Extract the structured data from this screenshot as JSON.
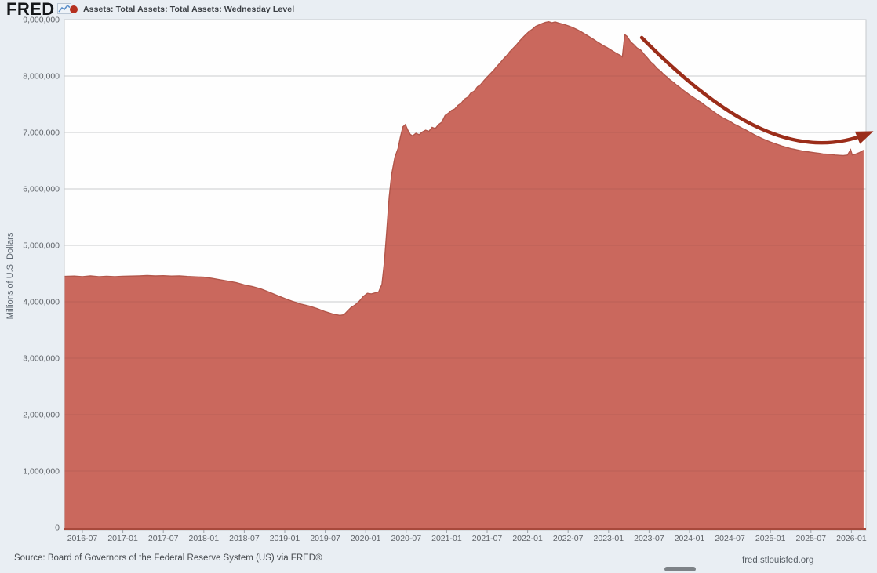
{
  "header": {
    "logo": "FRED"
  },
  "legend": {
    "marker_color": "#b5301f",
    "label": "Assets: Total Assets: Total Assets: Wednesday Level"
  },
  "footer": {
    "source": "Source: Board of Governors of the Federal Reserve System (US) via FRED®",
    "site": "fred.stlouisfed.org"
  },
  "chart_data": {
    "type": "area",
    "title": "Assets: Total Assets: Total Assets: Wednesday Level",
    "xlabel": "",
    "ylabel": "Millions of U.S. Dollars",
    "ylim": [
      0,
      9000000
    ],
    "xlim_decimal_years": [
      2016.277,
      2026.18
    ],
    "grid": "horizontal",
    "legend_position": "top-left",
    "background": "#fefefe",
    "fill_color": "#ca685d",
    "line_color": "#b2564a",
    "grid_color": "#d9dcdf",
    "border_color": "#c6cacd",
    "baseline_color": "#a8493c",
    "tick_color": "#5f6368",
    "y_ticks": [
      {
        "v": 0,
        "label": "0"
      },
      {
        "v": 1000000,
        "label": "1,000,000"
      },
      {
        "v": 2000000,
        "label": "2,000,000"
      },
      {
        "v": 3000000,
        "label": "3,000,000"
      },
      {
        "v": 4000000,
        "label": "4,000,000"
      },
      {
        "v": 5000000,
        "label": "5,000,000"
      },
      {
        "v": 6000000,
        "label": "6,000,000"
      },
      {
        "v": 7000000,
        "label": "7,000,000"
      },
      {
        "v": 8000000,
        "label": "8,000,000"
      },
      {
        "v": 9000000,
        "label": "9,000,000"
      }
    ],
    "x_ticks": [
      {
        "t": 2016.5,
        "label": "2016-07"
      },
      {
        "t": 2017.0,
        "label": "2017-01"
      },
      {
        "t": 2017.5,
        "label": "2017-07"
      },
      {
        "t": 2018.0,
        "label": "2018-01"
      },
      {
        "t": 2018.5,
        "label": "2018-07"
      },
      {
        "t": 2019.0,
        "label": "2019-01"
      },
      {
        "t": 2019.5,
        "label": "2019-07"
      },
      {
        "t": 2020.0,
        "label": "2020-01"
      },
      {
        "t": 2020.5,
        "label": "2020-07"
      },
      {
        "t": 2021.0,
        "label": "2021-01"
      },
      {
        "t": 2021.5,
        "label": "2021-07"
      },
      {
        "t": 2022.0,
        "label": "2022-01"
      },
      {
        "t": 2022.5,
        "label": "2022-07"
      },
      {
        "t": 2023.0,
        "label": "2023-01"
      },
      {
        "t": 2023.5,
        "label": "2023-07"
      },
      {
        "t": 2024.0,
        "label": "2024-01"
      },
      {
        "t": 2024.5,
        "label": "2024-07"
      },
      {
        "t": 2025.0,
        "label": "2025-01"
      },
      {
        "t": 2025.5,
        "label": "2025-07"
      },
      {
        "t": 2026.0,
        "label": "2026-01"
      }
    ],
    "series": [
      {
        "name": "Assets: Total Assets: Total Assets: Wednesday Level",
        "points": [
          [
            2016.28,
            4450000
          ],
          [
            2016.4,
            4455000
          ],
          [
            2016.5,
            4446000
          ],
          [
            2016.6,
            4458000
          ],
          [
            2016.7,
            4444000
          ],
          [
            2016.8,
            4452000
          ],
          [
            2016.9,
            4446000
          ],
          [
            2017.0,
            4451000
          ],
          [
            2017.1,
            4456000
          ],
          [
            2017.2,
            4460000
          ],
          [
            2017.3,
            4465000
          ],
          [
            2017.4,
            4458000
          ],
          [
            2017.5,
            4462000
          ],
          [
            2017.6,
            4455000
          ],
          [
            2017.7,
            4460000
          ],
          [
            2017.8,
            4448000
          ],
          [
            2017.9,
            4442000
          ],
          [
            2018.0,
            4436000
          ],
          [
            2018.1,
            4415000
          ],
          [
            2018.2,
            4390000
          ],
          [
            2018.3,
            4365000
          ],
          [
            2018.4,
            4340000
          ],
          [
            2018.5,
            4300000
          ],
          [
            2018.6,
            4270000
          ],
          [
            2018.7,
            4230000
          ],
          [
            2018.8,
            4175000
          ],
          [
            2018.9,
            4115000
          ],
          [
            2019.0,
            4058000
          ],
          [
            2019.1,
            4005000
          ],
          [
            2019.2,
            3960000
          ],
          [
            2019.3,
            3925000
          ],
          [
            2019.4,
            3880000
          ],
          [
            2019.5,
            3825000
          ],
          [
            2019.6,
            3780000
          ],
          [
            2019.68,
            3760000
          ],
          [
            2019.73,
            3769000
          ],
          [
            2019.78,
            3845000
          ],
          [
            2019.82,
            3900000
          ],
          [
            2019.87,
            3945000
          ],
          [
            2019.92,
            4010000
          ],
          [
            2019.97,
            4095000
          ],
          [
            2020.02,
            4150000
          ],
          [
            2020.07,
            4140000
          ],
          [
            2020.12,
            4160000
          ],
          [
            2020.16,
            4175000
          ],
          [
            2020.2,
            4310000
          ],
          [
            2020.23,
            4700000
          ],
          [
            2020.26,
            5250000
          ],
          [
            2020.29,
            5850000
          ],
          [
            2020.32,
            6250000
          ],
          [
            2020.36,
            6560000
          ],
          [
            2020.4,
            6720000
          ],
          [
            2020.43,
            6930000
          ],
          [
            2020.46,
            7100000
          ],
          [
            2020.49,
            7140000
          ],
          [
            2020.52,
            7040000
          ],
          [
            2020.55,
            6965000
          ],
          [
            2020.58,
            6940000
          ],
          [
            2020.62,
            6985000
          ],
          [
            2020.66,
            6960000
          ],
          [
            2020.7,
            7010000
          ],
          [
            2020.74,
            7040000
          ],
          [
            2020.78,
            7020000
          ],
          [
            2020.82,
            7090000
          ],
          [
            2020.86,
            7070000
          ],
          [
            2020.9,
            7140000
          ],
          [
            2020.94,
            7180000
          ],
          [
            2020.98,
            7300000
          ],
          [
            2021.02,
            7340000
          ],
          [
            2021.06,
            7390000
          ],
          [
            2021.1,
            7415000
          ],
          [
            2021.14,
            7480000
          ],
          [
            2021.18,
            7520000
          ],
          [
            2021.22,
            7590000
          ],
          [
            2021.26,
            7625000
          ],
          [
            2021.3,
            7700000
          ],
          [
            2021.34,
            7730000
          ],
          [
            2021.38,
            7810000
          ],
          [
            2021.42,
            7850000
          ],
          [
            2021.46,
            7920000
          ],
          [
            2021.5,
            7980000
          ],
          [
            2021.54,
            8040000
          ],
          [
            2021.58,
            8100000
          ],
          [
            2021.62,
            8170000
          ],
          [
            2021.66,
            8230000
          ],
          [
            2021.7,
            8300000
          ],
          [
            2021.74,
            8360000
          ],
          [
            2021.78,
            8430000
          ],
          [
            2021.82,
            8490000
          ],
          [
            2021.86,
            8550000
          ],
          [
            2021.9,
            8620000
          ],
          [
            2021.94,
            8680000
          ],
          [
            2021.98,
            8740000
          ],
          [
            2022.02,
            8790000
          ],
          [
            2022.06,
            8830000
          ],
          [
            2022.1,
            8880000
          ],
          [
            2022.14,
            8905000
          ],
          [
            2022.18,
            8930000
          ],
          [
            2022.22,
            8950000
          ],
          [
            2022.26,
            8962000
          ],
          [
            2022.3,
            8945000
          ],
          [
            2022.34,
            8958000
          ],
          [
            2022.38,
            8940000
          ],
          [
            2022.42,
            8925000
          ],
          [
            2022.46,
            8910000
          ],
          [
            2022.5,
            8890000
          ],
          [
            2022.54,
            8870000
          ],
          [
            2022.58,
            8845000
          ],
          [
            2022.62,
            8815000
          ],
          [
            2022.66,
            8785000
          ],
          [
            2022.7,
            8750000
          ],
          [
            2022.74,
            8715000
          ],
          [
            2022.78,
            8680000
          ],
          [
            2022.82,
            8645000
          ],
          [
            2022.86,
            8605000
          ],
          [
            2022.9,
            8570000
          ],
          [
            2022.94,
            8535000
          ],
          [
            2022.98,
            8505000
          ],
          [
            2023.02,
            8470000
          ],
          [
            2023.06,
            8435000
          ],
          [
            2023.1,
            8400000
          ],
          [
            2023.14,
            8370000
          ],
          [
            2023.17,
            8342000
          ],
          [
            2023.2,
            8734000
          ],
          [
            2023.23,
            8700000
          ],
          [
            2023.27,
            8610000
          ],
          [
            2023.31,
            8560000
          ],
          [
            2023.35,
            8500000
          ],
          [
            2023.4,
            8455000
          ],
          [
            2023.44,
            8385000
          ],
          [
            2023.48,
            8320000
          ],
          [
            2023.52,
            8250000
          ],
          [
            2023.56,
            8200000
          ],
          [
            2023.6,
            8135000
          ],
          [
            2023.64,
            8090000
          ],
          [
            2023.68,
            8030000
          ],
          [
            2023.72,
            7985000
          ],
          [
            2023.76,
            7930000
          ],
          [
            2023.8,
            7890000
          ],
          [
            2023.84,
            7840000
          ],
          [
            2023.88,
            7800000
          ],
          [
            2023.92,
            7750000
          ],
          [
            2023.96,
            7710000
          ],
          [
            2024.0,
            7665000
          ],
          [
            2024.05,
            7620000
          ],
          [
            2024.1,
            7570000
          ],
          [
            2024.15,
            7525000
          ],
          [
            2024.2,
            7470000
          ],
          [
            2024.25,
            7420000
          ],
          [
            2024.3,
            7365000
          ],
          [
            2024.35,
            7315000
          ],
          [
            2024.4,
            7270000
          ],
          [
            2024.45,
            7230000
          ],
          [
            2024.5,
            7195000
          ],
          [
            2024.55,
            7150000
          ],
          [
            2024.6,
            7115000
          ],
          [
            2024.65,
            7075000
          ],
          [
            2024.7,
            7040000
          ],
          [
            2024.75,
            7000000
          ],
          [
            2024.8,
            6960000
          ],
          [
            2024.85,
            6925000
          ],
          [
            2024.9,
            6890000
          ],
          [
            2024.95,
            6860000
          ],
          [
            2025.0,
            6830000
          ],
          [
            2025.05,
            6805000
          ],
          [
            2025.1,
            6780000
          ],
          [
            2025.15,
            6755000
          ],
          [
            2025.2,
            6735000
          ],
          [
            2025.25,
            6715000
          ],
          [
            2025.3,
            6700000
          ],
          [
            2025.35,
            6685000
          ],
          [
            2025.4,
            6670000
          ],
          [
            2025.45,
            6660000
          ],
          [
            2025.5,
            6650000
          ],
          [
            2025.55,
            6640000
          ],
          [
            2025.6,
            6630000
          ],
          [
            2025.65,
            6620000
          ],
          [
            2025.7,
            6615000
          ],
          [
            2025.75,
            6610000
          ],
          [
            2025.8,
            6600000
          ],
          [
            2025.85,
            6595000
          ],
          [
            2025.9,
            6590000
          ],
          [
            2025.95,
            6600000
          ],
          [
            2025.99,
            6695000
          ],
          [
            2026.01,
            6600000
          ],
          [
            2026.05,
            6615000
          ],
          [
            2026.1,
            6645000
          ],
          [
            2026.15,
            6685000
          ]
        ]
      }
    ],
    "annotation": {
      "type": "curved-arrow",
      "color": "#9b2d1a",
      "start": [
        2023.41,
        8680000
      ],
      "c1": [
        2024.4,
        7250000
      ],
      "c2": [
        2025.3,
        6450000
      ],
      "end": [
        2026.2,
        6980000
      ]
    }
  }
}
